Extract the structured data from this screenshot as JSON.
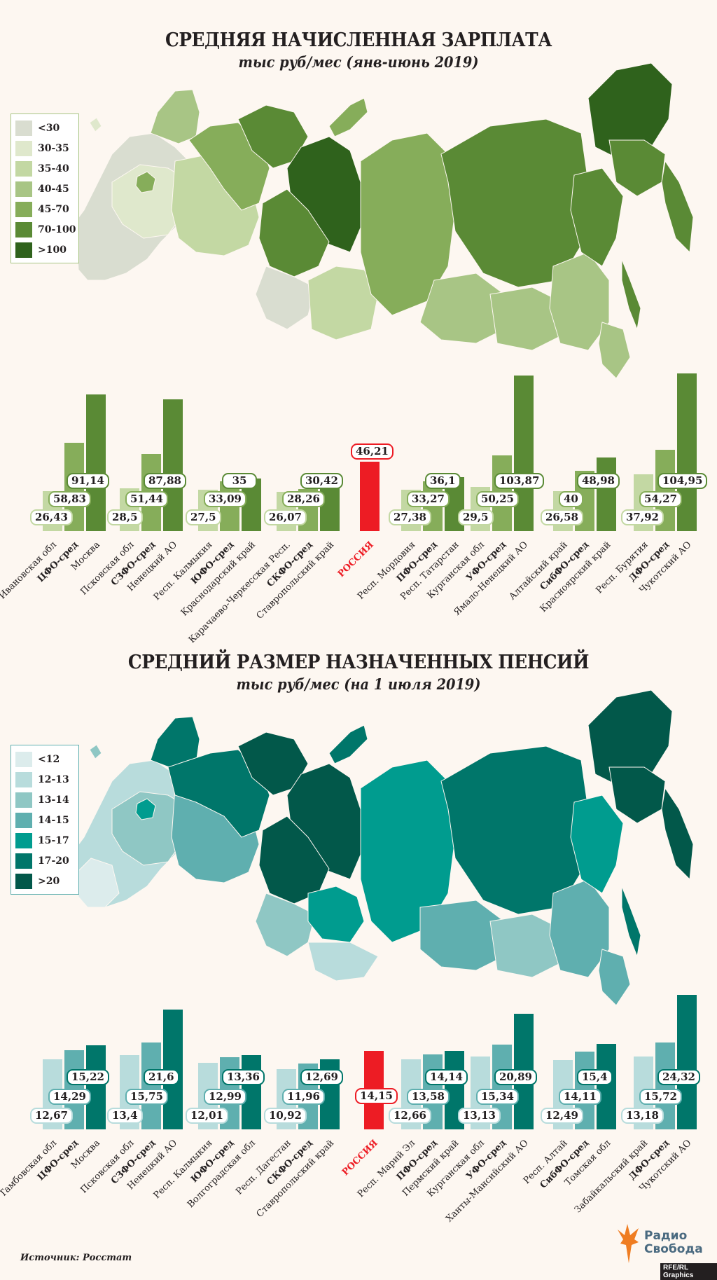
{
  "source": "Источник: Росстат",
  "logo": {
    "line1": "Радио",
    "line2": "Свобода",
    "credit": "RFE/RL Graphics"
  },
  "sections": [
    {
      "id": "salary",
      "title": "СРЕДНЯЯ НАЧИСЛЕННАЯ ЗАРПЛАТА",
      "subtitle": "тыс руб/мес (янв-июнь 2019)",
      "legend": [
        {
          "label": "<30",
          "color": "#d9ddd0"
        },
        {
          "label": "30-35",
          "color": "#dfe8cc"
        },
        {
          "label": "35-40",
          "color": "#c3d8a3"
        },
        {
          "label": "40-45",
          "color": "#a8c585"
        },
        {
          "label": "45-70",
          "color": "#86ad5a"
        },
        {
          "label": "70-100",
          "color": "#5a8a35"
        },
        {
          "label": ">100",
          "color": "#2f621c"
        }
      ],
      "legend_border": "#a8c585"
    },
    {
      "id": "pension",
      "title": "СРЕДНИЙ РАЗМЕР НАЗНАЧЕННЫХ ПЕНСИЙ",
      "subtitle": "тыс руб/мес (на 1 июля 2019)",
      "legend": [
        {
          "label": "<12",
          "color": "#dcecec"
        },
        {
          "label": "12-13",
          "color": "#b8dcdc"
        },
        {
          "label": "13-14",
          "color": "#8fc7c4"
        },
        {
          "label": "14-15",
          "color": "#5fafaf"
        },
        {
          "label": "15-17",
          "color": "#009c8f"
        },
        {
          "label": "17-20",
          "color": "#00766a"
        },
        {
          "label": ">20",
          "color": "#02584a"
        }
      ],
      "legend_border": "#5fafaf"
    }
  ],
  "chart_data": [
    {
      "type": "bar",
      "title": "СРЕДНЯЯ НАЧИСЛЕННАЯ ЗАРПЛАТА",
      "subtitle": "тыс руб/мес (янв-июнь 2019)",
      "ylabel": "тыс руб/мес",
      "grid": false,
      "legend_position": "left",
      "colors": {
        "min": "#c3d8a3",
        "avg": "#86ad5a",
        "max": "#5a8a35",
        "russia": "#ed1c24"
      },
      "russia": {
        "label": "РОССИЯ",
        "value": 46.21,
        "display": "46,21"
      },
      "groups": [
        {
          "district": "ЦФО",
          "bars": [
            {
              "label": "Ивановская обл",
              "value": 26.43,
              "display": "26,43"
            },
            {
              "label": "ЦФО-сред",
              "value": 58.83,
              "display": "58,83"
            },
            {
              "label": "Москва",
              "value": 91.14,
              "display": "91,14"
            }
          ]
        },
        {
          "district": "СЗФО",
          "bars": [
            {
              "label": "Псковская обл",
              "value": 28.5,
              "display": "28,5"
            },
            {
              "label": "СЗФО-сред",
              "value": 51.44,
              "display": "51,44"
            },
            {
              "label": "Ненецкий АО",
              "value": 87.88,
              "display": "87,88"
            }
          ]
        },
        {
          "district": "ЮФО",
          "bars": [
            {
              "label": "Респ. Калмыкия",
              "value": 27.5,
              "display": "27,5"
            },
            {
              "label": "ЮФО-сред",
              "value": 33.09,
              "display": "33,09"
            },
            {
              "label": "Краснодарский край",
              "value": 35,
              "display": "35"
            }
          ]
        },
        {
          "district": "СКФО",
          "bars": [
            {
              "label": "Карачаево-Черкесская Респ.",
              "value": 26.07,
              "display": "26,07"
            },
            {
              "label": "СКФО-сред",
              "value": 28.26,
              "display": "28,26"
            },
            {
              "label": "Ставропольский край",
              "value": 30.42,
              "display": "30,42"
            }
          ]
        },
        {
          "district": "ПФО",
          "bars": [
            {
              "label": "Респ. Мордовия",
              "value": 27.38,
              "display": "27,38"
            },
            {
              "label": "ПФО-сред",
              "value": 33.27,
              "display": "33,27"
            },
            {
              "label": "Респ. Татарстан",
              "value": 36.1,
              "display": "36,1"
            }
          ]
        },
        {
          "district": "УФО",
          "bars": [
            {
              "label": "Курганская обл",
              "value": 29.5,
              "display": "29,5"
            },
            {
              "label": "УФО-сред",
              "value": 50.25,
              "display": "50,25"
            },
            {
              "label": "Ямало-Ненецкий АО",
              "value": 103.87,
              "display": "103,87"
            }
          ]
        },
        {
          "district": "СибФО",
          "bars": [
            {
              "label": "Алтайский край",
              "value": 26.58,
              "display": "26,58"
            },
            {
              "label": "СибФО-сред",
              "value": 40,
              "display": "40"
            },
            {
              "label": "Красноярский край",
              "value": 48.98,
              "display": "48,98"
            }
          ]
        },
        {
          "district": "ДФО",
          "bars": [
            {
              "label": "Респ. Бурятия",
              "value": 37.92,
              "display": "37,92"
            },
            {
              "label": "ДФО-сред",
              "value": 54.27,
              "display": "54,27"
            },
            {
              "label": "Чукотский АО",
              "value": 104.95,
              "display": "104,95"
            }
          ]
        }
      ]
    },
    {
      "type": "bar",
      "title": "СРЕДНИЙ РАЗМЕР НАЗНАЧЕННЫХ ПЕНСИЙ",
      "subtitle": "тыс руб/мес (на 1 июля 2019)",
      "ylabel": "тыс руб/мес",
      "grid": false,
      "legend_position": "left",
      "colors": {
        "min": "#b8dcdc",
        "avg": "#5fafaf",
        "max": "#00766a",
        "russia": "#ed1c24"
      },
      "russia": {
        "label": "РОССИЯ",
        "value": 14.15,
        "display": "14,15"
      },
      "groups": [
        {
          "district": "ЦФО",
          "bars": [
            {
              "label": "Тамбовская обл",
              "value": 12.67,
              "display": "12,67"
            },
            {
              "label": "ЦФО-сред",
              "value": 14.29,
              "display": "14,29"
            },
            {
              "label": "Москва",
              "value": 15.22,
              "display": "15,22"
            }
          ]
        },
        {
          "district": "СЗФО",
          "bars": [
            {
              "label": "Псковская обл",
              "value": 13.4,
              "display": "13,4"
            },
            {
              "label": "СЗФО-сред",
              "value": 15.75,
              "display": "15,75"
            },
            {
              "label": "Ненецкий АО",
              "value": 21.6,
              "display": "21,6"
            }
          ]
        },
        {
          "district": "ЮФО",
          "bars": [
            {
              "label": "Респ. Калмыкия",
              "value": 12.01,
              "display": "12,01"
            },
            {
              "label": "ЮФО-сред",
              "value": 12.99,
              "display": "12,99"
            },
            {
              "label": "Волгоградская обл",
              "value": 13.36,
              "display": "13,36"
            }
          ]
        },
        {
          "district": "СКФО",
          "bars": [
            {
              "label": "Респ. Дагестан",
              "value": 10.92,
              "display": "10,92"
            },
            {
              "label": "СКФО-сред",
              "value": 11.96,
              "display": "11,96"
            },
            {
              "label": "Ставропольский край",
              "value": 12.69,
              "display": "12,69"
            }
          ]
        },
        {
          "district": "ПФО",
          "bars": [
            {
              "label": "Респ. Марий Эл",
              "value": 12.66,
              "display": "12,66"
            },
            {
              "label": "ПФО-сред",
              "value": 13.58,
              "display": "13,58"
            },
            {
              "label": "Пермский край",
              "value": 14.14,
              "display": "14,14"
            }
          ]
        },
        {
          "district": "УФО",
          "bars": [
            {
              "label": "Курганская обл",
              "value": 13.13,
              "display": "13,13"
            },
            {
              "label": "УФО-сред",
              "value": 15.34,
              "display": "15,34"
            },
            {
              "label": "Ханты-Мансийский АО",
              "value": 20.89,
              "display": "20,89"
            }
          ]
        },
        {
          "district": "СибФО",
          "bars": [
            {
              "label": "Респ. Алтай",
              "value": 12.49,
              "display": "12,49"
            },
            {
              "label": "СибФО-сред",
              "value": 14.11,
              "display": "14,11"
            },
            {
              "label": "Томская обл",
              "value": 15.4,
              "display": "15,4"
            }
          ]
        },
        {
          "district": "ДФО",
          "bars": [
            {
              "label": "Забайкальский край",
              "value": 13.18,
              "display": "13,18"
            },
            {
              "label": "ДФО-сред",
              "value": 15.72,
              "display": "15,72"
            },
            {
              "label": "Чукотский АО",
              "value": 24.32,
              "display": "24,32"
            }
          ]
        }
      ]
    }
  ]
}
